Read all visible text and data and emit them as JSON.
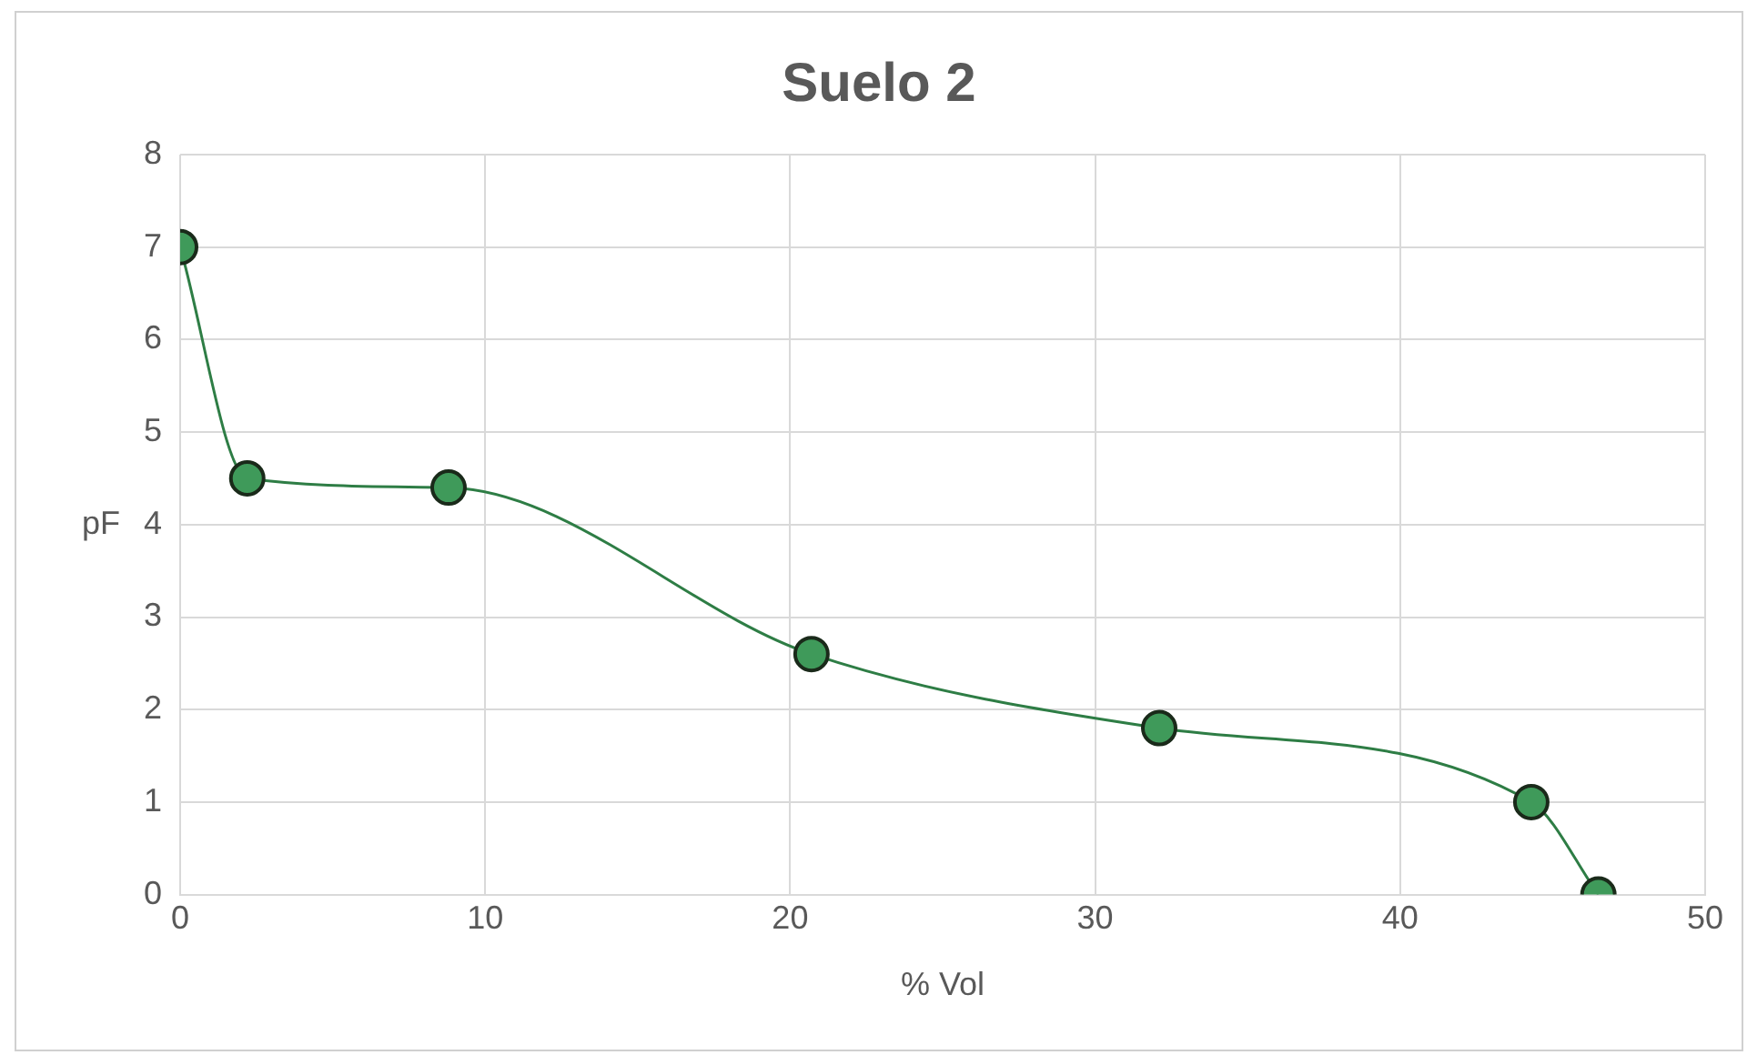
{
  "chart_data": {
    "type": "line",
    "title": "Suelo 2",
    "xlabel": "% Vol",
    "ylabel": "pF",
    "series": [
      {
        "color": "#2e7d45",
        "x": [
          0,
          2.2,
          8.8,
          20.7,
          32.1,
          44.3,
          46.5
        ],
        "values": [
          7,
          4.5,
          4.4,
          2.6,
          1.8,
          1,
          0
        ]
      }
    ],
    "xlim": [
      0,
      50
    ],
    "xticks": [
      0,
      10,
      20,
      30,
      40,
      50
    ],
    "ylim": [
      0,
      8
    ],
    "yticks": [
      0,
      1,
      2,
      3,
      4,
      5,
      6,
      7,
      8
    ],
    "grid": true,
    "legend": false,
    "marker": "circle",
    "line_style": "solid"
  }
}
